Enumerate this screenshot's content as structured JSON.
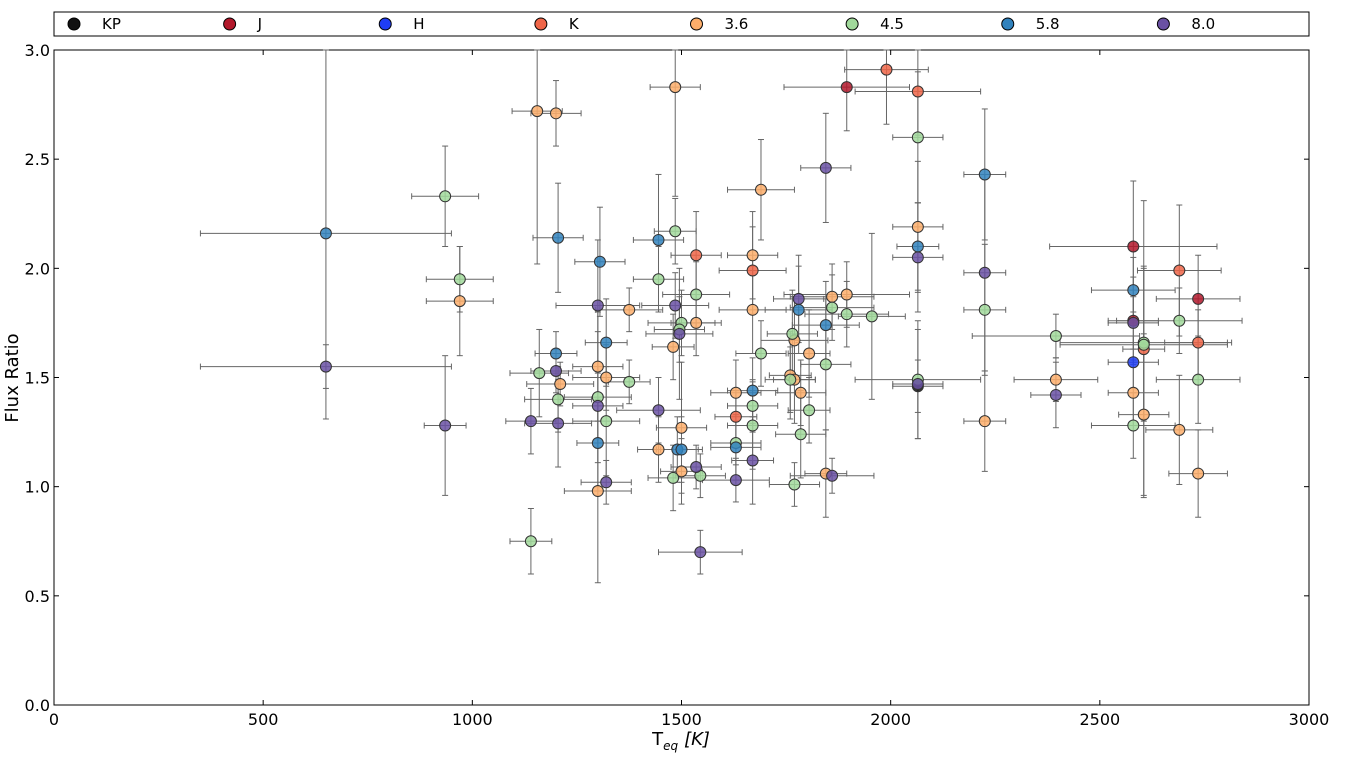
{
  "chart_data": {
    "type": "scatter",
    "title": "",
    "xlabel_main": "T",
    "xlabel_sub": "eq",
    "xlabel_unit": "[K]",
    "ylabel": "Flux Ratio",
    "xlim": [
      0,
      3000
    ],
    "ylim": [
      0.0,
      3.0
    ],
    "xticks": [
      0,
      500,
      1000,
      1500,
      2000,
      2500,
      3000
    ],
    "xtick_labels": [
      "0",
      "500",
      "1000",
      "1500",
      "2000",
      "2500",
      "3000"
    ],
    "yticks": [
      0.0,
      0.5,
      1.0,
      1.5,
      2.0,
      2.5,
      3.0
    ],
    "ytick_labels": [
      "0.0",
      "0.5",
      "1.0",
      "1.5",
      "2.0",
      "2.5",
      "3.0"
    ],
    "legend_position": "top",
    "series": [
      {
        "name": "KP",
        "color": "#111111",
        "points": [
          {
            "x": 2065,
            "y": 1.46,
            "xerr": 60,
            "yerr": 0.12
          }
        ]
      },
      {
        "name": "J",
        "color": "#b2182b",
        "points": [
          {
            "x": 1895,
            "y": 2.83,
            "xerr": 150,
            "yerr": 0.2
          },
          {
            "x": 2580,
            "y": 2.1,
            "xerr": 200,
            "yerr": 0.3
          },
          {
            "x": 2735,
            "y": 1.86,
            "xerr": 100,
            "yerr": 0.2
          },
          {
            "x": 2580,
            "y": 1.76,
            "xerr": 60,
            "yerr": 0.2
          }
        ]
      },
      {
        "name": "H",
        "color": "#1f3df5",
        "points": [
          {
            "x": 2580,
            "y": 1.57,
            "xerr": 60,
            "yerr": 0.12
          }
        ]
      },
      {
        "name": "K",
        "color": "#ef6548",
        "points": [
          {
            "x": 1990,
            "y": 2.91,
            "xerr": 100,
            "yerr": 0.25
          },
          {
            "x": 2065,
            "y": 2.81,
            "xerr": 150,
            "yerr": 0.2
          },
          {
            "x": 1535,
            "y": 2.06,
            "xerr": 60,
            "yerr": 0.2
          },
          {
            "x": 1670,
            "y": 1.99,
            "xerr": 80,
            "yerr": 0.2
          },
          {
            "x": 2690,
            "y": 1.99,
            "xerr": 100,
            "yerr": 0.3
          },
          {
            "x": 2735,
            "y": 1.66,
            "xerr": 80,
            "yerr": 0.15
          },
          {
            "x": 2605,
            "y": 1.63,
            "xerr": 50,
            "yerr": 0.68
          },
          {
            "x": 1630,
            "y": 1.32,
            "xerr": 50,
            "yerr": 0.12
          }
        ]
      },
      {
        "name": "3.6",
        "color": "#fdae6b",
        "points": [
          {
            "x": 1155,
            "y": 2.72,
            "xerr": 60,
            "yerr": 0.7
          },
          {
            "x": 1200,
            "y": 2.71,
            "xerr": 60,
            "yerr": 0.15
          },
          {
            "x": 1485,
            "y": 2.83,
            "xerr": 60,
            "yerr": 0.5
          },
          {
            "x": 1690,
            "y": 2.36,
            "xerr": 80,
            "yerr": 0.23
          },
          {
            "x": 2065,
            "y": 2.19,
            "xerr": 60,
            "yerr": 0.3
          },
          {
            "x": 1670,
            "y": 2.06,
            "xerr": 60,
            "yerr": 0.2
          },
          {
            "x": 1895,
            "y": 1.88,
            "xerr": 150,
            "yerr": 0.15
          },
          {
            "x": 1860,
            "y": 1.87,
            "xerr": 100,
            "yerr": 0.15
          },
          {
            "x": 970,
            "y": 1.85,
            "xerr": 80,
            "yerr": 0.25
          },
          {
            "x": 1375,
            "y": 1.81,
            "xerr": 80,
            "yerr": 0.1
          },
          {
            "x": 1670,
            "y": 1.81,
            "xerr": 80,
            "yerr": 0.2
          },
          {
            "x": 1535,
            "y": 1.75,
            "xerr": 60,
            "yerr": 0.15
          },
          {
            "x": 1770,
            "y": 1.67,
            "xerr": 80,
            "yerr": 0.2
          },
          {
            "x": 1480,
            "y": 1.64,
            "xerr": 50,
            "yerr": 0.15
          },
          {
            "x": 1805,
            "y": 1.61,
            "xerr": 50,
            "yerr": 0.2
          },
          {
            "x": 1300,
            "y": 1.55,
            "xerr": 60,
            "yerr": 0.25
          },
          {
            "x": 1320,
            "y": 1.5,
            "xerr": 80,
            "yerr": 0.15
          },
          {
            "x": 1760,
            "y": 1.51,
            "xerr": 50,
            "yerr": 0.2
          },
          {
            "x": 1770,
            "y": 1.49,
            "xerr": 50,
            "yerr": 0.2
          },
          {
            "x": 2395,
            "y": 1.49,
            "xerr": 100,
            "yerr": 0.1
          },
          {
            "x": 1210,
            "y": 1.47,
            "xerr": 80,
            "yerr": 0.1
          },
          {
            "x": 1630,
            "y": 1.43,
            "xerr": 60,
            "yerr": 0.15
          },
          {
            "x": 1785,
            "y": 1.43,
            "xerr": 60,
            "yerr": 0.15
          },
          {
            "x": 2580,
            "y": 1.43,
            "xerr": 60,
            "yerr": 0.15
          },
          {
            "x": 2605,
            "y": 1.33,
            "xerr": 60,
            "yerr": 0.37
          },
          {
            "x": 2225,
            "y": 1.3,
            "xerr": 50,
            "yerr": 0.23
          },
          {
            "x": 1500,
            "y": 1.27,
            "xerr": 60,
            "yerr": 0.3
          },
          {
            "x": 2690,
            "y": 1.26,
            "xerr": 80,
            "yerr": 0.25
          },
          {
            "x": 1445,
            "y": 1.17,
            "xerr": 50,
            "yerr": 0.15
          },
          {
            "x": 1500,
            "y": 1.07,
            "xerr": 50,
            "yerr": 0.15
          },
          {
            "x": 1845,
            "y": 1.06,
            "xerr": 50,
            "yerr": 0.2
          },
          {
            "x": 2735,
            "y": 1.06,
            "xerr": 70,
            "yerr": 0.2
          },
          {
            "x": 1300,
            "y": 0.98,
            "xerr": 80,
            "yerr": 0.42
          }
        ]
      },
      {
        "name": "4.5",
        "color": "#a1d99b",
        "points": [
          {
            "x": 935,
            "y": 2.33,
            "xerr": 80,
            "yerr": 0.23
          },
          {
            "x": 2065,
            "y": 2.6,
            "xerr": 60,
            "yerr": 0.3
          },
          {
            "x": 1485,
            "y": 2.17,
            "xerr": 50,
            "yerr": 0.15
          },
          {
            "x": 970,
            "y": 1.95,
            "xerr": 80,
            "yerr": 0.15
          },
          {
            "x": 1445,
            "y": 1.95,
            "xerr": 60,
            "yerr": 0.15
          },
          {
            "x": 1535,
            "y": 1.88,
            "xerr": 80,
            "yerr": 0.15
          },
          {
            "x": 1860,
            "y": 1.82,
            "xerr": 100,
            "yerr": 0.15
          },
          {
            "x": 1895,
            "y": 1.79,
            "xerr": 100,
            "yerr": 0.15
          },
          {
            "x": 1955,
            "y": 1.78,
            "xerr": 80,
            "yerr": 0.38
          },
          {
            "x": 2225,
            "y": 1.81,
            "xerr": 50,
            "yerr": 0.3
          },
          {
            "x": 1500,
            "y": 1.75,
            "xerr": 80,
            "yerr": 0.15
          },
          {
            "x": 2690,
            "y": 1.76,
            "xerr": 150,
            "yerr": 0.15
          },
          {
            "x": 1495,
            "y": 1.72,
            "xerr": 60,
            "yerr": 0.15
          },
          {
            "x": 1765,
            "y": 1.7,
            "xerr": 60,
            "yerr": 0.2
          },
          {
            "x": 2395,
            "y": 1.69,
            "xerr": 200,
            "yerr": 0.1
          },
          {
            "x": 2605,
            "y": 1.66,
            "xerr": 200,
            "yerr": 0.35
          },
          {
            "x": 2605,
            "y": 1.65,
            "xerr": 200,
            "yerr": 0.35
          },
          {
            "x": 1690,
            "y": 1.61,
            "xerr": 60,
            "yerr": 0.15
          },
          {
            "x": 1845,
            "y": 1.56,
            "xerr": 60,
            "yerr": 0.3
          },
          {
            "x": 1160,
            "y": 1.52,
            "xerr": 70,
            "yerr": 0.2
          },
          {
            "x": 2065,
            "y": 1.49,
            "xerr": 150,
            "yerr": 0.27
          },
          {
            "x": 1760,
            "y": 1.49,
            "xerr": 60,
            "yerr": 0.15
          },
          {
            "x": 1375,
            "y": 1.48,
            "xerr": 50,
            "yerr": 0.1
          },
          {
            "x": 2735,
            "y": 1.49,
            "xerr": 100,
            "yerr": 0.2
          },
          {
            "x": 1300,
            "y": 1.41,
            "xerr": 80,
            "yerr": 0.3
          },
          {
            "x": 1205,
            "y": 1.4,
            "xerr": 80,
            "yerr": 0.15
          },
          {
            "x": 1670,
            "y": 1.37,
            "xerr": 60,
            "yerr": 0.12
          },
          {
            "x": 1805,
            "y": 1.35,
            "xerr": 50,
            "yerr": 0.15
          },
          {
            "x": 1320,
            "y": 1.3,
            "xerr": 80,
            "yerr": 0.25
          },
          {
            "x": 1670,
            "y": 1.28,
            "xerr": 60,
            "yerr": 0.2
          },
          {
            "x": 2580,
            "y": 1.28,
            "xerr": 100,
            "yerr": 0.15
          },
          {
            "x": 1785,
            "y": 1.24,
            "xerr": 60,
            "yerr": 0.2
          },
          {
            "x": 1630,
            "y": 1.2,
            "xerr": 60,
            "yerr": 0.1
          },
          {
            "x": 1545,
            "y": 1.05,
            "xerr": 60,
            "yerr": 0.1
          },
          {
            "x": 1480,
            "y": 1.04,
            "xerr": 60,
            "yerr": 0.15
          },
          {
            "x": 1770,
            "y": 1.01,
            "xerr": 60,
            "yerr": 0.1
          },
          {
            "x": 1140,
            "y": 0.75,
            "xerr": 50,
            "yerr": 0.15
          }
        ]
      },
      {
        "name": "5.8",
        "color": "#3182bd",
        "points": [
          {
            "x": 650,
            "y": 2.16,
            "xerr": 300,
            "yerr": 0.85
          },
          {
            "x": 2225,
            "y": 2.43,
            "xerr": 50,
            "yerr": 0.3
          },
          {
            "x": 1205,
            "y": 2.14,
            "xerr": 60,
            "yerr": 0.25
          },
          {
            "x": 1445,
            "y": 2.13,
            "xerr": 60,
            "yerr": 0.3
          },
          {
            "x": 2065,
            "y": 2.1,
            "xerr": 50,
            "yerr": 0.2
          },
          {
            "x": 1305,
            "y": 2.03,
            "xerr": 60,
            "yerr": 0.25
          },
          {
            "x": 2580,
            "y": 1.9,
            "xerr": 100,
            "yerr": 0.15
          },
          {
            "x": 1780,
            "y": 1.81,
            "xerr": 80,
            "yerr": 0.2
          },
          {
            "x": 1845,
            "y": 1.74,
            "xerr": 80,
            "yerr": 0.2
          },
          {
            "x": 1320,
            "y": 1.66,
            "xerr": 50,
            "yerr": 0.2
          },
          {
            "x": 1200,
            "y": 1.61,
            "xerr": 50,
            "yerr": 0.1
          },
          {
            "x": 1670,
            "y": 1.44,
            "xerr": 60,
            "yerr": 0.15
          },
          {
            "x": 1300,
            "y": 1.2,
            "xerr": 50,
            "yerr": 0.2
          },
          {
            "x": 1630,
            "y": 1.18,
            "xerr": 60,
            "yerr": 0.15
          },
          {
            "x": 1490,
            "y": 1.17,
            "xerr": 50,
            "yerr": 0.15
          },
          {
            "x": 1500,
            "y": 1.17,
            "xerr": 50,
            "yerr": 0.15
          }
        ]
      },
      {
        "name": "8.0",
        "color": "#6a51a3",
        "points": [
          {
            "x": 650,
            "y": 1.55,
            "xerr": 300,
            "yerr": 0.1
          },
          {
            "x": 935,
            "y": 1.28,
            "xerr": 50,
            "yerr": 0.32
          },
          {
            "x": 1845,
            "y": 2.46,
            "xerr": 60,
            "yerr": 0.25
          },
          {
            "x": 2065,
            "y": 2.05,
            "xerr": 60,
            "yerr": 0.25
          },
          {
            "x": 2225,
            "y": 1.98,
            "xerr": 50,
            "yerr": 0.45
          },
          {
            "x": 1780,
            "y": 1.86,
            "xerr": 60,
            "yerr": 0.2
          },
          {
            "x": 1300,
            "y": 1.83,
            "xerr": 100,
            "yerr": 0.3
          },
          {
            "x": 1485,
            "y": 1.83,
            "xerr": 80,
            "yerr": 0.15
          },
          {
            "x": 2580,
            "y": 1.75,
            "xerr": 60,
            "yerr": 0.12
          },
          {
            "x": 1495,
            "y": 1.7,
            "xerr": 80,
            "yerr": 0.3
          },
          {
            "x": 1200,
            "y": 1.53,
            "xerr": 60,
            "yerr": 0.1
          },
          {
            "x": 2065,
            "y": 1.47,
            "xerr": 60,
            "yerr": 0.25
          },
          {
            "x": 2395,
            "y": 1.42,
            "xerr": 60,
            "yerr": 0.15
          },
          {
            "x": 1300,
            "y": 1.37,
            "xerr": 60,
            "yerr": 0.15
          },
          {
            "x": 1445,
            "y": 1.35,
            "xerr": 100,
            "yerr": 0.15
          },
          {
            "x": 1140,
            "y": 1.3,
            "xerr": 60,
            "yerr": 0.15
          },
          {
            "x": 1205,
            "y": 1.29,
            "xerr": 80,
            "yerr": 0.2
          },
          {
            "x": 1670,
            "y": 1.12,
            "xerr": 50,
            "yerr": 0.2
          },
          {
            "x": 1535,
            "y": 1.09,
            "xerr": 60,
            "yerr": 0.1
          },
          {
            "x": 1860,
            "y": 1.05,
            "xerr": 100,
            "yerr": 0.08
          },
          {
            "x": 1630,
            "y": 1.03,
            "xerr": 80,
            "yerr": 0.1
          },
          {
            "x": 1320,
            "y": 1.02,
            "xerr": 60,
            "yerr": 0.1
          },
          {
            "x": 1545,
            "y": 0.7,
            "xerr": 100,
            "yerr": 0.1
          }
        ]
      }
    ]
  }
}
